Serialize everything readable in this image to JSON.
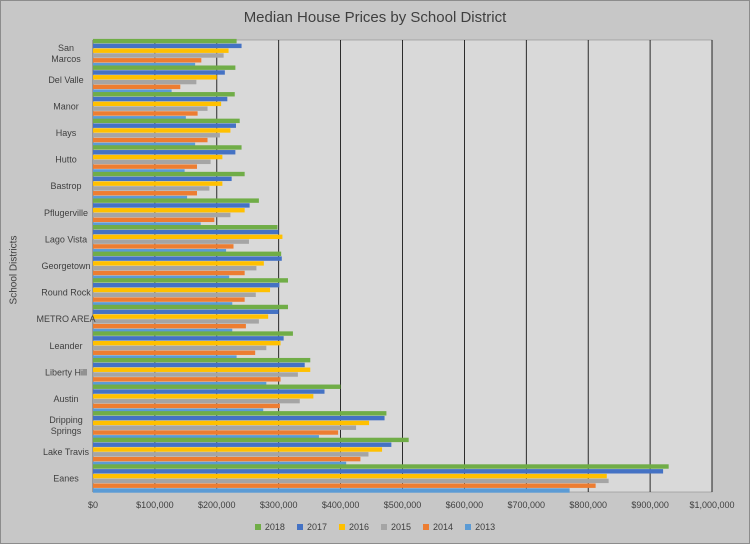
{
  "chart_data": {
    "type": "bar",
    "orientation": "horizontal",
    "title": "Median House Prices by School District",
    "xlabel": "",
    "ylabel": "School Districts",
    "xlim": [
      0,
      1000000
    ],
    "x_ticks": [
      "$0",
      "$100,000",
      "$200,000",
      "$300,000",
      "$400,000",
      "$500,000",
      "$600,000",
      "$700,000",
      "$800,000",
      "$900,000",
      "$1,000,000"
    ],
    "grid": "vertical",
    "legend_position": "bottom",
    "categories": [
      {
        "lines": [
          "San",
          "Marcos"
        ]
      },
      {
        "lines": [
          "Del Valle"
        ]
      },
      {
        "lines": [
          "Manor"
        ]
      },
      {
        "lines": [
          "Hays"
        ]
      },
      {
        "lines": [
          "Hutto"
        ]
      },
      {
        "lines": [
          "Bastrop"
        ]
      },
      {
        "lines": [
          "Pflugerville"
        ]
      },
      {
        "lines": [
          "Lago Vista"
        ]
      },
      {
        "lines": [
          "Georgetown"
        ]
      },
      {
        "lines": [
          "Round Rock"
        ]
      },
      {
        "lines": [
          "METRO AREA"
        ]
      },
      {
        "lines": [
          "Leander"
        ]
      },
      {
        "lines": [
          "Liberty Hill"
        ]
      },
      {
        "lines": [
          "Austin"
        ]
      },
      {
        "lines": [
          "Dripping",
          "Springs"
        ]
      },
      {
        "lines": [
          "Lake Travis"
        ]
      },
      {
        "lines": [
          "Eanes"
        ]
      }
    ],
    "series": [
      {
        "name": "2018",
        "color": "#70ad47",
        "values": [
          232000,
          230000,
          229000,
          237000,
          240000,
          245000,
          268000,
          298000,
          304000,
          315000,
          315000,
          323000,
          351000,
          400000,
          474000,
          510000,
          930000
        ]
      },
      {
        "name": "2017",
        "color": "#4472c4",
        "values": [
          240000,
          213000,
          217000,
          231000,
          230000,
          224000,
          253000,
          300000,
          305000,
          301000,
          300000,
          308000,
          342000,
          374000,
          471000,
          482000,
          921000
        ]
      },
      {
        "name": "2016",
        "color": "#ffc000",
        "values": [
          219000,
          200000,
          207000,
          222000,
          209000,
          209000,
          245000,
          306000,
          276000,
          286000,
          283000,
          303000,
          351000,
          356000,
          446000,
          467000,
          830000
        ]
      },
      {
        "name": "2015",
        "color": "#a5a5a5",
        "values": [
          211000,
          167000,
          185000,
          205000,
          190000,
          188000,
          222000,
          252000,
          264000,
          263000,
          268000,
          280000,
          331000,
          334000,
          425000,
          445000,
          833000
        ]
      },
      {
        "name": "2014",
        "color": "#ed7d31",
        "values": [
          175000,
          141000,
          169000,
          185000,
          168000,
          168000,
          196000,
          227000,
          245000,
          245000,
          247000,
          262000,
          303000,
          302000,
          396000,
          432000,
          812000
        ]
      },
      {
        "name": "2013",
        "color": "#5b9bd5",
        "values": [
          165000,
          127000,
          150000,
          165000,
          148000,
          152000,
          174000,
          215000,
          220000,
          225000,
          225000,
          232000,
          280000,
          275000,
          365000,
          409000,
          770000
        ]
      }
    ]
  }
}
